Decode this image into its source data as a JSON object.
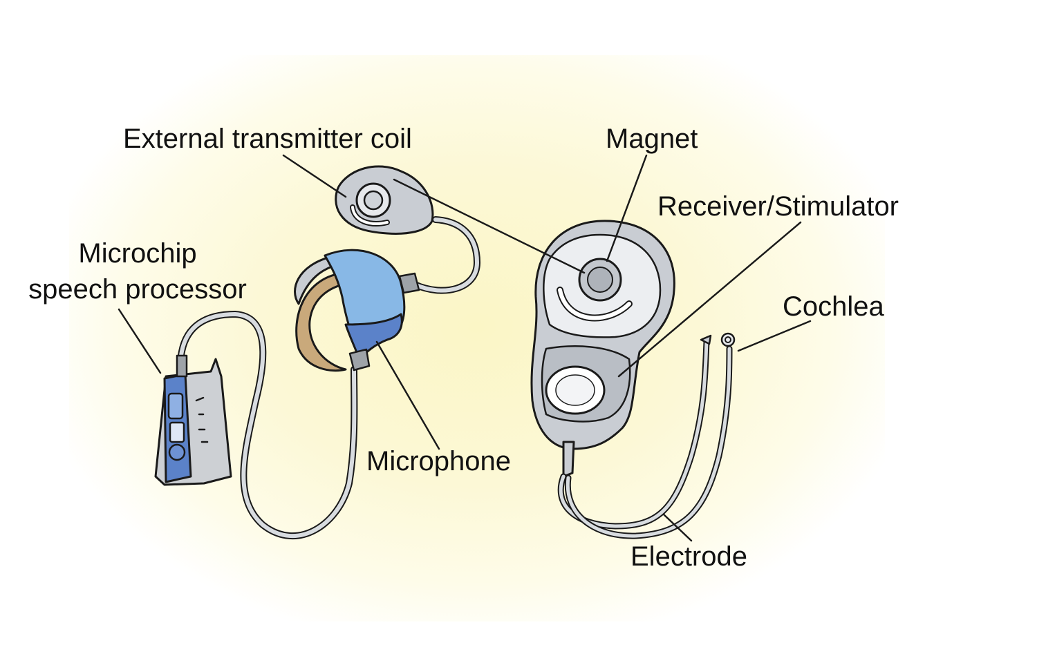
{
  "labels": {
    "coil": "External transmitter coil",
    "magnet": "Magnet",
    "receiver": "Receiver/Stimulator",
    "processor_line1": "Microchip",
    "processor_line2": "speech processor",
    "cochlea": "Cochlea",
    "microphone": "Microphone",
    "electrode": "Electrode"
  },
  "colors": {
    "background_glow": "#fbf6c6",
    "device_gray": "#c9cdd3",
    "processor_blue": "#5b82c9",
    "headpiece_blue": "#88b8e6",
    "ear_hook_tan": "#c9a97b",
    "outline": "#1a1a1a"
  }
}
